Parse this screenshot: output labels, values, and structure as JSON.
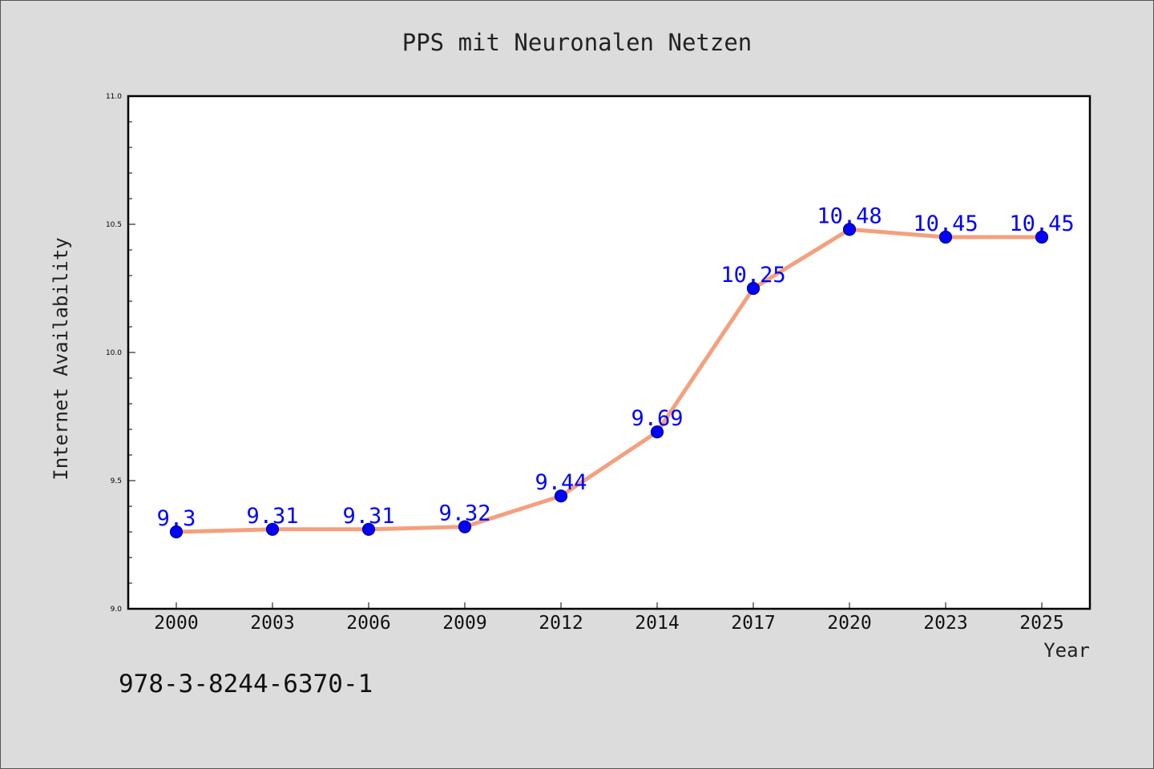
{
  "chart_data": {
    "type": "line",
    "title": "PPS mit Neuronalen Netzen",
    "xlabel": "Year",
    "ylabel": "Internet Availability",
    "categories": [
      "2000",
      "2003",
      "2006",
      "2009",
      "2012",
      "2014",
      "2017",
      "2020",
      "2023",
      "2025"
    ],
    "series": [
      {
        "values": [
          9.3,
          9.31,
          9.31,
          9.32,
          9.44,
          9.69,
          10.25,
          10.48,
          10.45,
          10.45
        ],
        "labels": [
          "9.3",
          "9.31",
          "9.31",
          "9.32",
          "9.44",
          "9.69",
          "10.25",
          "10.48",
          "10.45",
          "10.45"
        ]
      }
    ],
    "ylim": [
      9.0,
      11.0
    ],
    "yticks": [
      "9.0",
      "9.5",
      "10.0",
      "10.5",
      "11.0"
    ],
    "grid": false,
    "legend": "none",
    "colors": {
      "line": "#f4a07e",
      "marker": "#0000ff",
      "marker_edge": "#000080",
      "data_label": "#0000ff",
      "plot_bg": "#ffffff",
      "page_bg": "#dcdcdc"
    }
  },
  "footer": {
    "isbn": "978-3-8244-6370-1"
  }
}
